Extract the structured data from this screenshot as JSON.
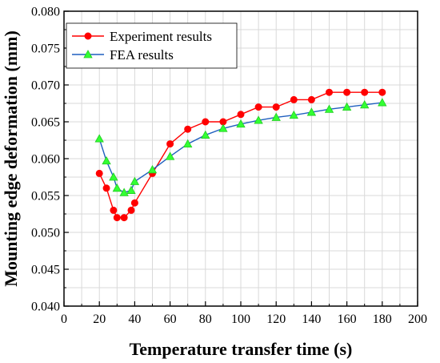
{
  "chart_data": {
    "type": "line",
    "xlabel": "Temperature transfer time (s)",
    "ylabel": "Mounting edge deformation (mm)",
    "xlim": [
      0,
      200
    ],
    "ylim": [
      0.04,
      0.08
    ],
    "x_ticks": [
      "0",
      "20",
      "40",
      "60",
      "80",
      "100",
      "120",
      "140",
      "160",
      "180",
      "200"
    ],
    "y_ticks": [
      "0.040",
      "0.045",
      "0.050",
      "0.055",
      "0.060",
      "0.065",
      "0.070",
      "0.075",
      "0.080"
    ],
    "grid": true,
    "legend_position": "top-left",
    "series": [
      {
        "name": "Experiment results",
        "line_color": "#ff0000",
        "marker": "circle",
        "marker_color": "#ff0000",
        "x": [
          20,
          24,
          28,
          30,
          34,
          38,
          40,
          50,
          60,
          70,
          80,
          90,
          100,
          110,
          120,
          130,
          140,
          150,
          160,
          170,
          180
        ],
        "y": [
          0.058,
          0.056,
          0.053,
          0.052,
          0.052,
          0.053,
          0.054,
          0.058,
          0.062,
          0.064,
          0.065,
          0.065,
          0.066,
          0.067,
          0.067,
          0.068,
          0.068,
          0.069,
          0.069,
          0.069,
          0.069
        ]
      },
      {
        "name": "FEA results",
        "line_color": "#1f5fbf",
        "marker": "triangle",
        "marker_color": "#33ff33",
        "x": [
          20,
          24,
          28,
          30,
          34,
          38,
          40,
          50,
          60,
          70,
          80,
          90,
          100,
          110,
          120,
          130,
          140,
          150,
          160,
          170,
          180
        ],
        "y": [
          0.0627,
          0.0597,
          0.0575,
          0.056,
          0.0554,
          0.0557,
          0.0569,
          0.0585,
          0.0603,
          0.062,
          0.0632,
          0.0641,
          0.0647,
          0.0652,
          0.0656,
          0.0659,
          0.0663,
          0.0667,
          0.067,
          0.0673,
          0.0676
        ]
      }
    ]
  }
}
